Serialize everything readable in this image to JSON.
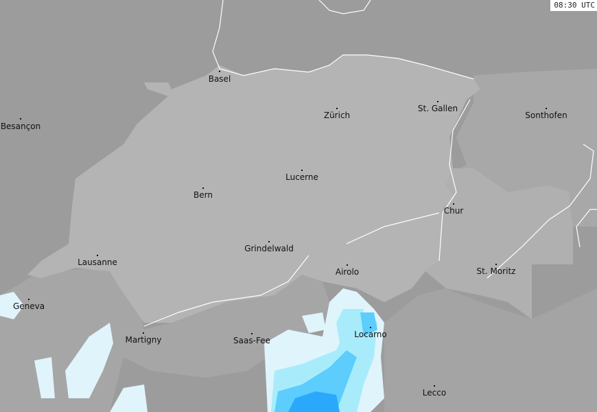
{
  "timestamp": "08:30 UTC",
  "colors": {
    "outside": "#9c9c9c",
    "neighbour": "#a8a8a8",
    "switzerland": "#b4b4b4",
    "radar_light": "#e0f4fc",
    "radar_mid": "#a8ecfc",
    "radar_strong": "#5ccdfc",
    "radar_heavy": "#2aa8fc"
  },
  "cities": [
    {
      "name": "Basel"
    },
    {
      "name": "Besançon"
    },
    {
      "name": "Zürich"
    },
    {
      "name": "St. Gallen"
    },
    {
      "name": "Sonthofen"
    },
    {
      "name": "Lucerne"
    },
    {
      "name": "Bern"
    },
    {
      "name": "Chur"
    },
    {
      "name": "Grindelwald"
    },
    {
      "name": "Lausanne"
    },
    {
      "name": "Airolo"
    },
    {
      "name": "St. Moritz"
    },
    {
      "name": "Geneva"
    },
    {
      "name": "Locarno"
    },
    {
      "name": "Martigny"
    },
    {
      "name": "Saas-Fee"
    },
    {
      "name": "Lecco"
    }
  ]
}
